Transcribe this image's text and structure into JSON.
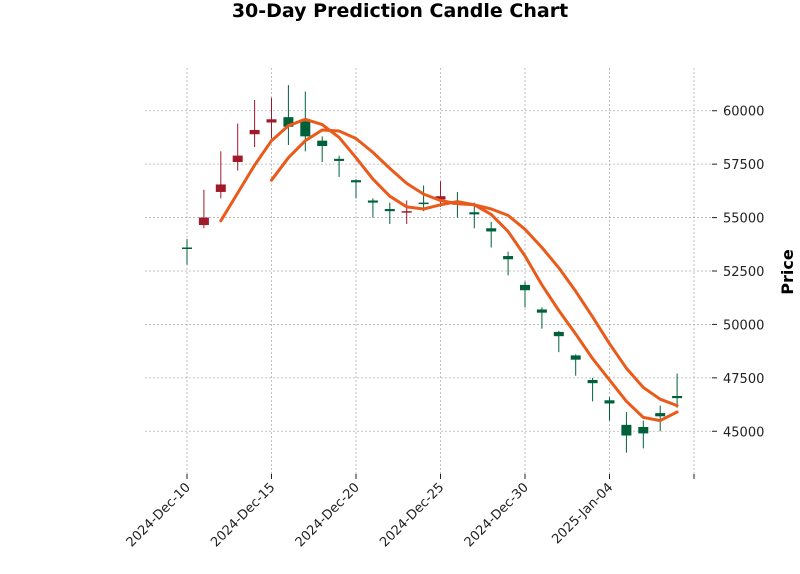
{
  "chart_data": {
    "type": "candlestick",
    "title": "30-Day Prediction Candle Chart",
    "ylabel": "Price",
    "xlabel": "",
    "ylim": [
      43000,
      62000
    ],
    "y_ticks": [
      45000,
      47500,
      50000,
      52500,
      55000,
      57500,
      60000
    ],
    "y_tick_labels": [
      "45000",
      "47500",
      "50000",
      "52500",
      "55000",
      "57500",
      "60000"
    ],
    "x_ticks": [
      0,
      5,
      10,
      15,
      20,
      25
    ],
    "x_tick_labels": [
      "2024-Dec-10",
      "2024-Dec-15",
      "2024-Dec-20",
      "2024-Dec-25",
      "2024-Dec-30",
      "2025-Jan-04"
    ],
    "grid": true,
    "colors": {
      "up": "#00603a",
      "down": "#a01a2a",
      "ma_fast": "#ea5a1a",
      "ma_slow": "#ea5a1a"
    },
    "candles": [
      {
        "open": 53550,
        "high": 54000,
        "low": 52800,
        "close": 53600
      },
      {
        "open": 55000,
        "high": 56300,
        "low": 54500,
        "close": 54650
      },
      {
        "open": 56550,
        "high": 58100,
        "low": 55900,
        "close": 56200
      },
      {
        "open": 57900,
        "high": 59400,
        "low": 57200,
        "close": 57600
      },
      {
        "open": 59100,
        "high": 60500,
        "low": 58300,
        "close": 58900
      },
      {
        "open": 59600,
        "high": 60600,
        "low": 58700,
        "close": 59450
      },
      {
        "open": 59250,
        "high": 61200,
        "low": 58400,
        "close": 59700
      },
      {
        "open": 58800,
        "high": 60900,
        "low": 58100,
        "close": 59500
      },
      {
        "open": 58350,
        "high": 58800,
        "low": 57600,
        "close": 58600
      },
      {
        "open": 57650,
        "high": 57900,
        "low": 56900,
        "close": 57750
      },
      {
        "open": 56650,
        "high": 56800,
        "low": 55900,
        "close": 56750
      },
      {
        "open": 55700,
        "high": 55900,
        "low": 55000,
        "close": 55800
      },
      {
        "open": 55300,
        "high": 55700,
        "low": 54700,
        "close": 55400
      },
      {
        "open": 55300,
        "high": 55800,
        "low": 54700,
        "close": 55250
      },
      {
        "open": 55650,
        "high": 56500,
        "low": 55300,
        "close": 55700
      },
      {
        "open": 56000,
        "high": 56700,
        "low": 55500,
        "close": 55850
      },
      {
        "open": 55600,
        "high": 56200,
        "low": 55000,
        "close": 55700
      },
      {
        "open": 55150,
        "high": 55700,
        "low": 54500,
        "close": 55250
      },
      {
        "open": 54350,
        "high": 54800,
        "low": 53600,
        "close": 54500
      },
      {
        "open": 53050,
        "high": 53400,
        "low": 52300,
        "close": 53200
      },
      {
        "open": 51600,
        "high": 52000,
        "low": 50800,
        "close": 51850
      },
      {
        "open": 50550,
        "high": 50800,
        "low": 49800,
        "close": 50700
      },
      {
        "open": 49450,
        "high": 49700,
        "low": 48700,
        "close": 49650
      },
      {
        "open": 48350,
        "high": 48600,
        "low": 47600,
        "close": 48550
      },
      {
        "open": 47250,
        "high": 47500,
        "low": 46400,
        "close": 47400
      },
      {
        "open": 46300,
        "high": 46600,
        "low": 45500,
        "close": 46450
      },
      {
        "open": 44800,
        "high": 45900,
        "low": 44000,
        "close": 45300
      },
      {
        "open": 44900,
        "high": 45500,
        "low": 44200,
        "close": 45200
      },
      {
        "open": 45700,
        "high": 46200,
        "low": 45000,
        "close": 45850
      },
      {
        "open": 46550,
        "high": 47700,
        "low": 46100,
        "close": 46650
      }
    ],
    "ma_fast": [
      null,
      null,
      54850,
      56150,
      57450,
      58600,
      59300,
      59600,
      59350,
      58750,
      57800,
      56800,
      56000,
      55500,
      55400,
      55600,
      55750,
      55600,
      55150,
      54350,
      53200,
      51850,
      50650,
      49550,
      48400,
      47400,
      46400,
      45650,
      45500,
      45900
    ],
    "ma_slow": [
      null,
      null,
      null,
      null,
      null,
      56750,
      57800,
      58600,
      59100,
      59050,
      58700,
      58050,
      57300,
      56600,
      56100,
      55800,
      55650,
      55600,
      55400,
      55100,
      54450,
      53600,
      52650,
      51550,
      50350,
      49100,
      47950,
      47050,
      46500,
      46200
    ]
  }
}
